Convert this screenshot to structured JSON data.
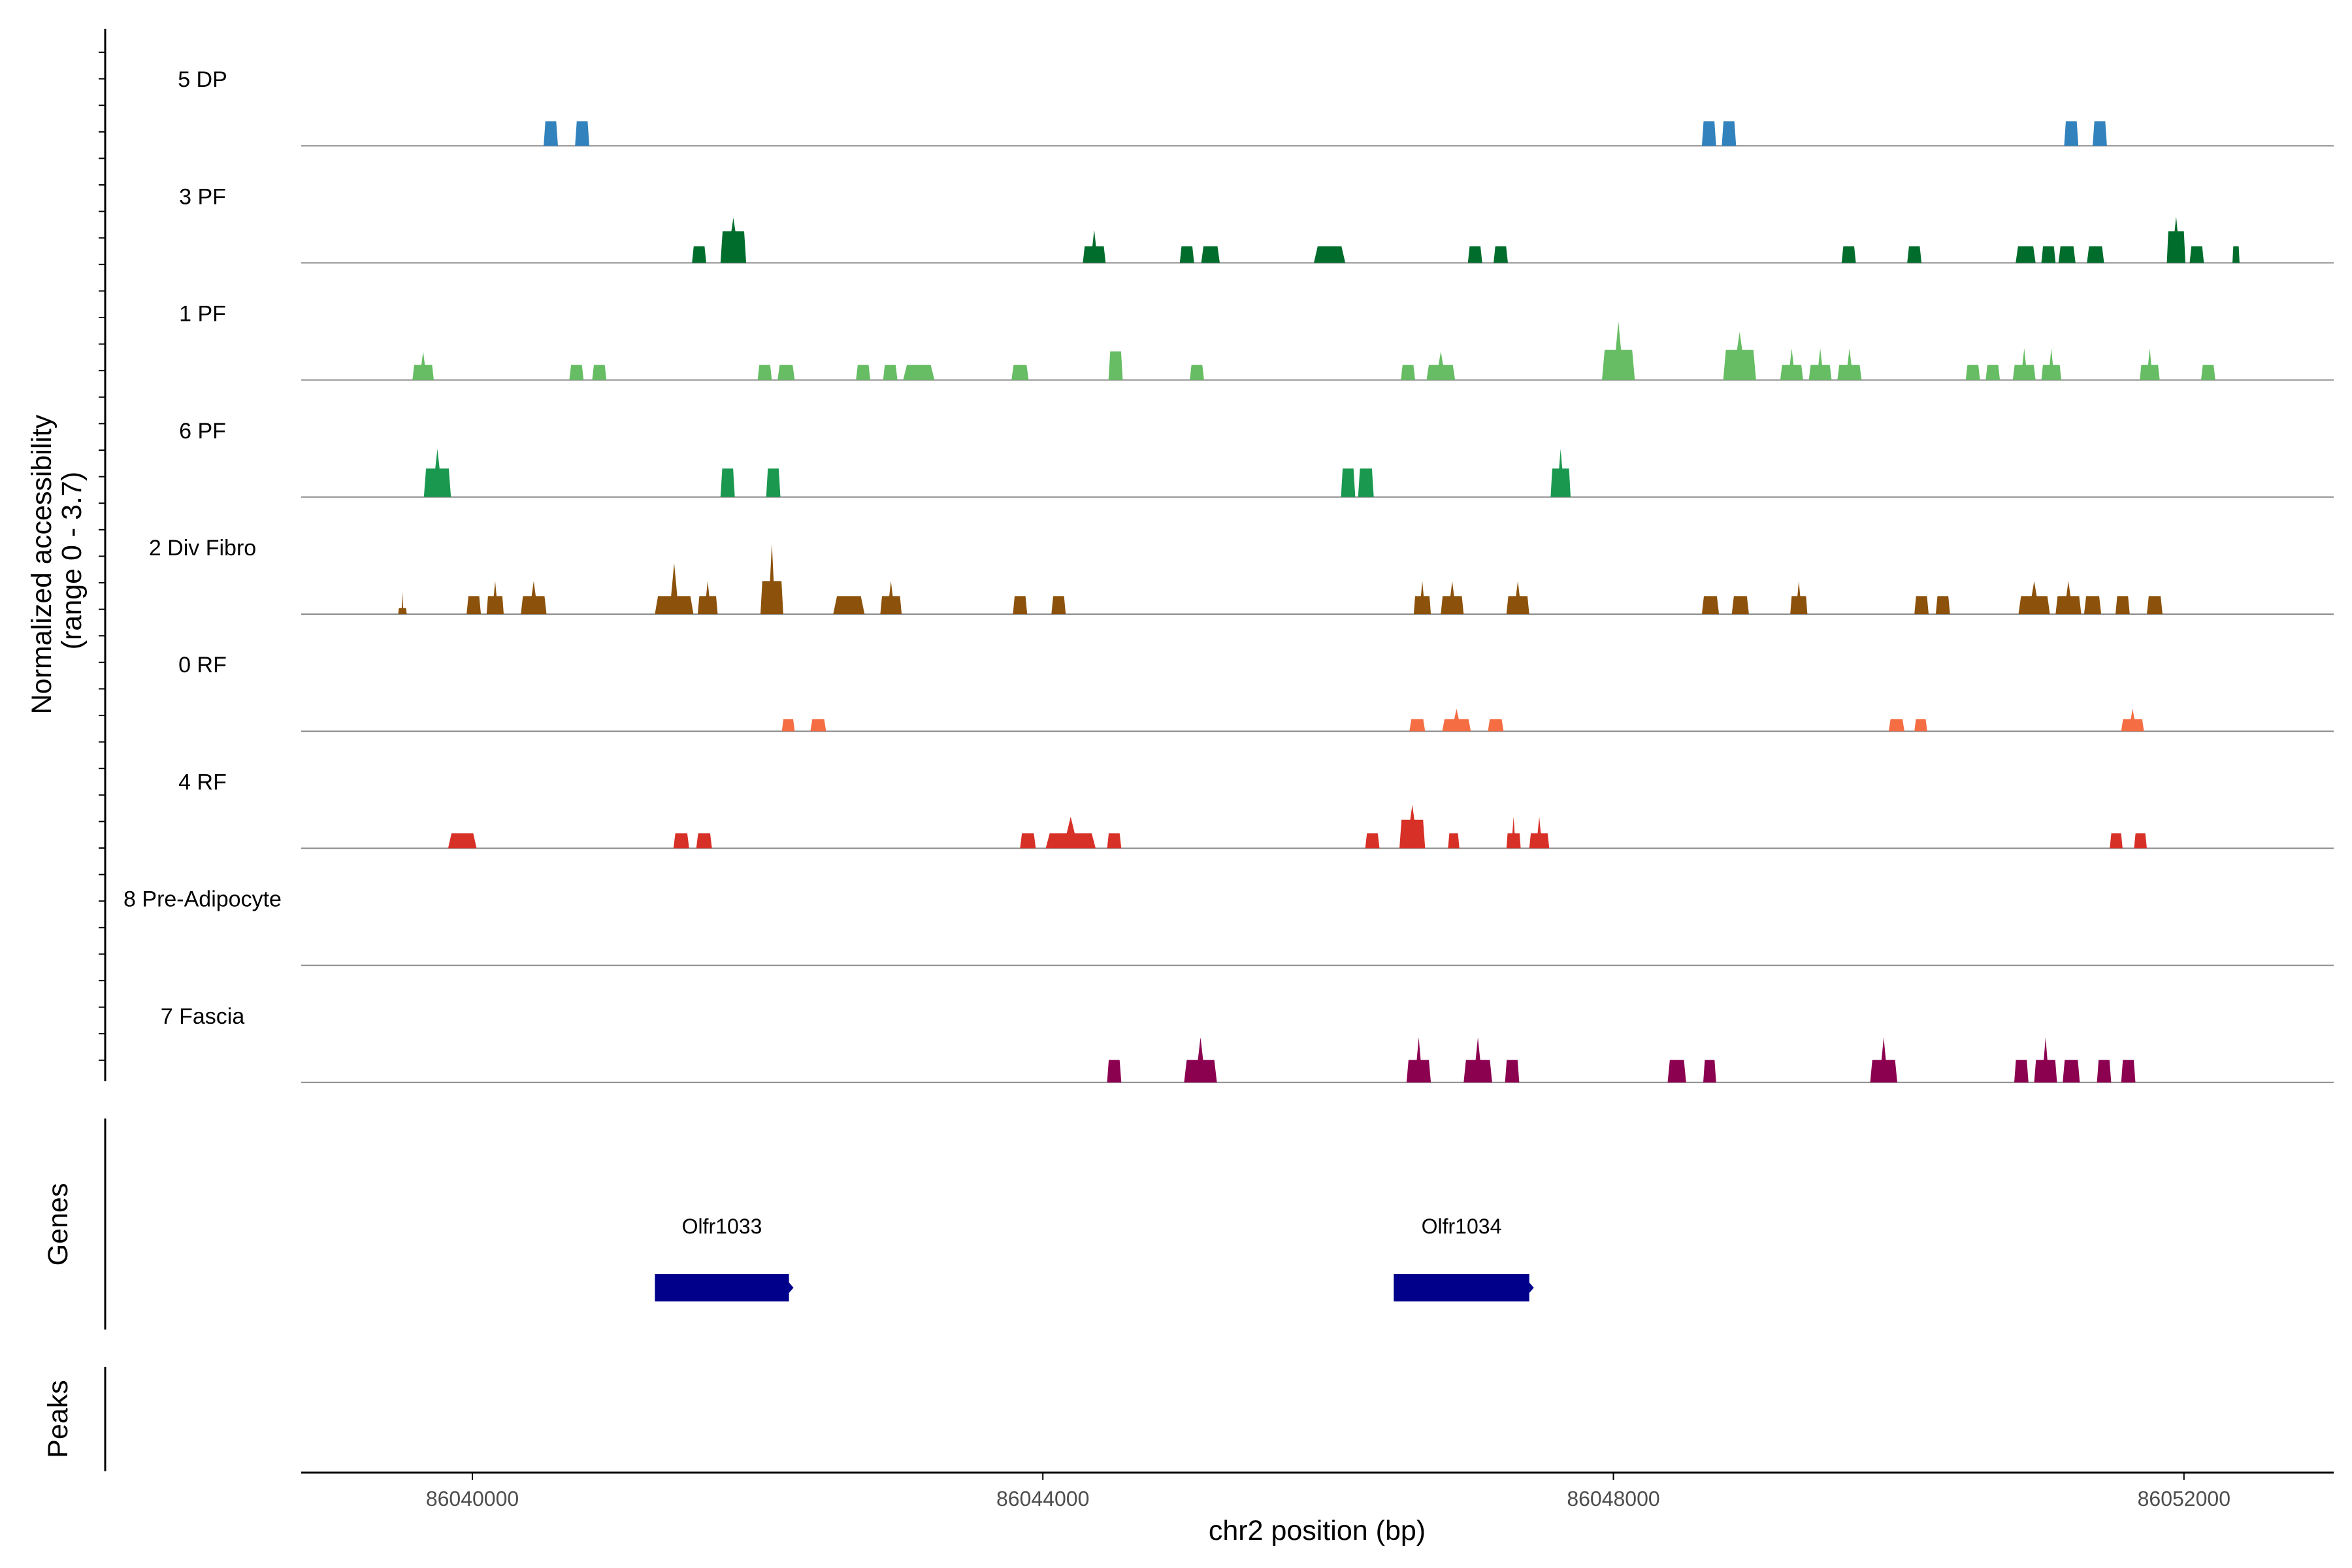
{
  "chart_data": {
    "type": "area",
    "title": "",
    "xlabel": "chr2 position (bp)",
    "ylabel": "Normalized accessibility\n(range 0 - 3.7)",
    "ylim": [
      0,
      3.7
    ],
    "xlim": [
      86038800,
      86053050
    ],
    "x_ticks": [
      86040000,
      86044000,
      86048000,
      86052000
    ],
    "x_tick_labels": [
      "86040000",
      "86044000",
      "86048000",
      "86052000"
    ],
    "track_panel_labels": [
      "Genes",
      "Peaks"
    ],
    "tracks": [
      {
        "name": "5 DP",
        "color": "#3182bd",
        "peaks": [
          [
            86040500,
            86040600,
            0.82,
            0.82
          ],
          [
            86040720,
            86040820,
            0.82,
            0.82
          ],
          [
            86048620,
            86048720,
            0.82,
            0.82
          ],
          [
            86048760,
            86048860,
            0.82,
            0.82
          ],
          [
            86051160,
            86051260,
            0.82,
            0.82
          ],
          [
            86051360,
            86051460,
            0.82,
            0.82
          ]
        ]
      },
      {
        "name": "3 PF",
        "color": "#006d2c",
        "peaks": [
          [
            86041540,
            86041640,
            0.55,
            0.55
          ],
          [
            86041740,
            86041920,
            1.5,
            1.05
          ],
          [
            86044280,
            86044440,
            1.1,
            0.55
          ],
          [
            86044960,
            86045060,
            0.55,
            0.55
          ],
          [
            86045110,
            86045240,
            0.55,
            0.55
          ],
          [
            86045900,
            86046120,
            0.55,
            0.55
          ],
          [
            86046980,
            86047080,
            0.55,
            0.55
          ],
          [
            86047160,
            86047260,
            0.55,
            0.55
          ],
          [
            86049600,
            86049700,
            0.55,
            0.55
          ],
          [
            86050060,
            86050160,
            0.55,
            0.55
          ],
          [
            86050820,
            86050960,
            0.55,
            0.55
          ],
          [
            86051000,
            86051100,
            0.55,
            0.55
          ],
          [
            86051120,
            86051240,
            0.55,
            0.55
          ],
          [
            86051320,
            86051440,
            0.55,
            0.55
          ],
          [
            86051880,
            86052010,
            1.55,
            1.05
          ],
          [
            86052040,
            86052140,
            0.55,
            0.55
          ],
          [
            86052340,
            86052390,
            0.55,
            0.55
          ]
        ]
      },
      {
        "name": "1 PF",
        "color": "#66bd63",
        "peaks": [
          [
            86039580,
            86039730,
            0.95,
            0.5
          ],
          [
            86040680,
            86040780,
            0.5,
            0.5
          ],
          [
            86040840,
            86040940,
            0.5,
            0.5
          ],
          [
            86042000,
            86042100,
            0.5,
            0.5
          ],
          [
            86042140,
            86042260,
            0.5,
            0.5
          ],
          [
            86042690,
            86042790,
            0.5,
            0.5
          ],
          [
            86042880,
            86042980,
            0.5,
            0.5
          ],
          [
            86043020,
            86043240,
            0.5,
            0.5
          ],
          [
            86043780,
            86043900,
            0.5,
            0.5
          ],
          [
            86044460,
            86044560,
            0.95,
            0.95
          ],
          [
            86045030,
            86045130,
            0.5,
            0.5
          ],
          [
            86046510,
            86046610,
            0.5,
            0.5
          ],
          [
            86046690,
            86046890,
            0.95,
            0.5
          ],
          [
            86047920,
            86048150,
            1.95,
            1.0
          ],
          [
            86048770,
            86049000,
            1.6,
            1.0
          ],
          [
            86049170,
            86049330,
            1.05,
            0.5
          ],
          [
            86049370,
            86049530,
            1.05,
            0.5
          ],
          [
            86049570,
            86049740,
            1.05,
            0.5
          ],
          [
            86050470,
            86050570,
            0.5,
            0.5
          ],
          [
            86050610,
            86050710,
            0.5,
            0.5
          ],
          [
            86050800,
            86050960,
            1.05,
            0.5
          ],
          [
            86051000,
            86051140,
            1.05,
            0.5
          ],
          [
            86051690,
            86051830,
            1.05,
            0.5
          ],
          [
            86052120,
            86052220,
            0.5,
            0.5
          ]
        ]
      },
      {
        "name": "6 PF",
        "color": "#1a9850",
        "peaks": [
          [
            86039660,
            86039850,
            1.6,
            0.95
          ],
          [
            86041740,
            86041840,
            0.95,
            0.95
          ],
          [
            86042060,
            86042160,
            0.95,
            0.95
          ],
          [
            86046090,
            86046190,
            0.95,
            0.95
          ],
          [
            86046210,
            86046320,
            0.95,
            0.95
          ],
          [
            86047560,
            86047700,
            1.6,
            0.95
          ]
        ]
      },
      {
        "name": "2 Div Fibro",
        "color": "#8c510a",
        "peaks": [
          [
            86039480,
            86039540,
            0.75,
            0.2
          ],
          [
            86039960,
            86040060,
            0.6,
            0.6
          ],
          [
            86040100,
            86040220,
            1.1,
            0.6
          ],
          [
            86040340,
            86040520,
            1.1,
            0.6
          ],
          [
            86041280,
            86041550,
            1.7,
            0.6
          ],
          [
            86041580,
            86041720,
            1.1,
            0.6
          ],
          [
            86042020,
            86042180,
            2.35,
            1.1
          ],
          [
            86042530,
            86042750,
            0.6,
            0.6
          ],
          [
            86042860,
            86043010,
            1.1,
            0.6
          ],
          [
            86043790,
            86043890,
            0.6,
            0.6
          ],
          [
            86044060,
            86044160,
            0.6,
            0.6
          ],
          [
            86046600,
            86046720,
            1.1,
            0.6
          ],
          [
            86046790,
            86046950,
            1.1,
            0.6
          ],
          [
            86047250,
            86047410,
            1.1,
            0.6
          ],
          [
            86048620,
            86048740,
            0.6,
            0.6
          ],
          [
            86048830,
            86048950,
            0.6,
            0.6
          ],
          [
            86049240,
            86049360,
            1.1,
            0.6
          ],
          [
            86050110,
            86050210,
            0.6,
            0.6
          ],
          [
            86050260,
            86050360,
            0.6,
            0.6
          ],
          [
            86050840,
            86051060,
            1.1,
            0.6
          ],
          [
            86051100,
            86051280,
            1.1,
            0.6
          ],
          [
            86051300,
            86051420,
            0.6,
            0.6
          ],
          [
            86051520,
            86051620,
            0.6,
            0.6
          ],
          [
            86051740,
            86051850,
            0.6,
            0.6
          ]
        ]
      },
      {
        "name": "0 RF",
        "color": "#f46d43",
        "peaks": [
          [
            86042170,
            86042260,
            0.4,
            0.4
          ],
          [
            86042370,
            86042480,
            0.4,
            0.4
          ],
          [
            86046570,
            86046680,
            0.4,
            0.4
          ],
          [
            86046800,
            86047000,
            0.75,
            0.4
          ],
          [
            86047120,
            86047230,
            0.4,
            0.4
          ],
          [
            86049930,
            86050040,
            0.4,
            0.4
          ],
          [
            86050110,
            86050200,
            0.4,
            0.4
          ],
          [
            86051560,
            86051720,
            0.75,
            0.4
          ]
        ]
      },
      {
        "name": "4 RF",
        "color": "#d73027",
        "peaks": [
          [
            86039830,
            86040030,
            0.5,
            0.5
          ],
          [
            86041410,
            86041520,
            0.5,
            0.5
          ],
          [
            86041570,
            86041680,
            0.5,
            0.5
          ],
          [
            86043840,
            86043950,
            0.5,
            0.5
          ],
          [
            86044020,
            86044370,
            1.05,
            0.5
          ],
          [
            86044450,
            86044550,
            0.5,
            0.5
          ],
          [
            86046260,
            86046360,
            0.5,
            0.5
          ],
          [
            86046500,
            86046680,
            1.45,
            0.95
          ],
          [
            86046840,
            86046920,
            0.5,
            0.5
          ],
          [
            86047250,
            86047350,
            1.05,
            0.5
          ],
          [
            86047410,
            86047550,
            1.05,
            0.5
          ],
          [
            86051480,
            86051570,
            0.5,
            0.5
          ],
          [
            86051650,
            86051740,
            0.5,
            0.5
          ]
        ]
      },
      {
        "name": "8 Pre-Adipocyte",
        "color": "#9e9ac8",
        "peaks": []
      },
      {
        "name": "7 Fascia",
        "color": "#8c0050",
        "peaks": [
          [
            86044450,
            86044550,
            0.75,
            0.75
          ],
          [
            86044990,
            86045220,
            1.5,
            0.75
          ],
          [
            86046550,
            86046720,
            1.5,
            0.75
          ],
          [
            86046950,
            86047150,
            1.5,
            0.75
          ],
          [
            86047240,
            86047340,
            0.75,
            0.75
          ],
          [
            86048380,
            86048510,
            0.75,
            0.75
          ],
          [
            86048630,
            86048720,
            0.75,
            0.75
          ],
          [
            86049800,
            86049990,
            1.5,
            0.75
          ],
          [
            86050810,
            86050910,
            0.75,
            0.75
          ],
          [
            86050950,
            86051110,
            1.5,
            0.75
          ],
          [
            86051150,
            86051270,
            0.75,
            0.75
          ],
          [
            86051390,
            86051490,
            0.75,
            0.75
          ],
          [
            86051560,
            86051660,
            0.75,
            0.75
          ]
        ]
      }
    ],
    "genes": [
      {
        "name": "Olfr1033",
        "start": 86041280,
        "end": 86042220,
        "color": "#00008b"
      },
      {
        "name": "Olfr1034",
        "start": 86046460,
        "end": 86047410,
        "color": "#00008b"
      }
    ]
  }
}
